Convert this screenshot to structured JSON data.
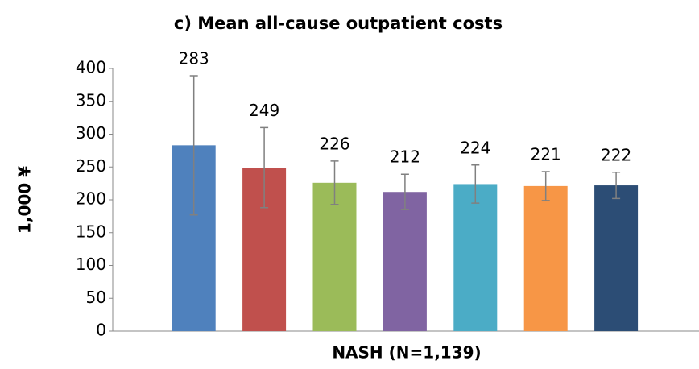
{
  "chart_data": {
    "type": "bar",
    "title": "c) Mean all-cause outpatient costs",
    "y_label": "1,000 ¥",
    "x_label": "NASH (N=1,139)",
    "categories": [
      null,
      null,
      null,
      null,
      null,
      null,
      null
    ],
    "values": [
      283,
      249,
      226,
      212,
      224,
      221,
      222
    ],
    "errors": [
      106,
      61,
      33,
      27,
      29,
      22,
      20
    ],
    "colors": [
      "#4f81bd",
      "#c0504d",
      "#9bbb59",
      "#8064a2",
      "#4bacc6",
      "#f79646",
      "#2c4d75"
    ],
    "ylim": [
      0,
      400
    ],
    "yticks": [
      0,
      50,
      100,
      150,
      200,
      250,
      300,
      350,
      400
    ],
    "grid": false
  }
}
